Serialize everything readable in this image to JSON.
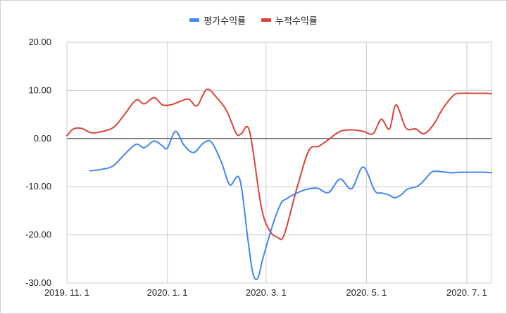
{
  "chart_data": {
    "type": "line",
    "title": "",
    "xlabel": "",
    "ylabel": "",
    "ylim": [
      -30,
      20
    ],
    "xlim": [
      "2019-11-01",
      "2020-07-16"
    ],
    "y_ticks": [
      20,
      10,
      0,
      -10,
      -20,
      -30
    ],
    "y_tick_labels": [
      "20.00",
      "10.00",
      "0.00",
      "-10.00",
      "-20.00",
      "-30.00"
    ],
    "x_ticks": [
      "2019-11-01",
      "2020-01-01",
      "2020-03-01",
      "2020-05-01",
      "2020-07-01"
    ],
    "x_tick_labels": [
      "2019. 11. 1",
      "2020. 1. 1",
      "2020. 3. 1",
      "2020. 5. 1",
      "2020. 7. 1"
    ],
    "grid": true,
    "legend": "top-center",
    "series": [
      {
        "name": "평가수익률",
        "color": "#4285f4",
        "x": [
          "2019-11-15",
          "2019-11-22",
          "2019-11-29",
          "2019-12-06",
          "2019-12-13",
          "2019-12-18",
          "2019-12-24",
          "2019-12-29",
          "2020-01-01",
          "2020-01-06",
          "2020-01-11",
          "2020-01-17",
          "2020-01-23",
          "2020-01-28",
          "2020-02-03",
          "2020-02-08",
          "2020-02-14",
          "2020-02-19",
          "2020-02-22",
          "2020-02-25",
          "2020-02-28",
          "2020-03-05",
          "2020-03-10",
          "2020-03-13",
          "2020-03-18",
          "2020-03-25",
          "2020-04-01",
          "2020-04-08",
          "2020-04-15",
          "2020-04-22",
          "2020-04-29",
          "2020-05-06",
          "2020-05-10",
          "2020-05-14",
          "2020-05-18",
          "2020-05-22",
          "2020-05-26",
          "2020-06-01",
          "2020-06-05",
          "2020-06-10",
          "2020-06-16",
          "2020-06-22",
          "2020-06-27",
          "2020-07-02",
          "2020-07-07",
          "2020-07-12",
          "2020-07-16"
        ],
        "y": [
          -6.7,
          -6.4,
          -5.7,
          -3.3,
          -1.2,
          -1.9,
          -0.5,
          -1.5,
          -2.0,
          1.5,
          -1.3,
          -2.9,
          -0.9,
          -0.8,
          -5.0,
          -9.6,
          -8.4,
          -21.0,
          -28.0,
          -29.0,
          -25.0,
          -18.0,
          -13.5,
          -12.6,
          -11.6,
          -10.6,
          -10.3,
          -11.2,
          -8.4,
          -10.4,
          -5.9,
          -10.8,
          -11.3,
          -11.6,
          -12.3,
          -11.7,
          -10.5,
          -9.9,
          -8.7,
          -6.9,
          -6.9,
          -7.1,
          -7.0,
          -7.0,
          -7.0,
          -7.0,
          -7.1
        ]
      },
      {
        "name": "누적수익률",
        "color": "#db4437",
        "x": [
          "2019-11-01",
          "2019-11-05",
          "2019-11-10",
          "2019-11-16",
          "2019-11-24",
          "2019-11-30",
          "2019-12-06",
          "2019-12-13",
          "2019-12-18",
          "2019-12-24",
          "2019-12-29",
          "2020-01-03",
          "2020-01-08",
          "2020-01-14",
          "2020-01-19",
          "2020-01-25",
          "2020-01-31",
          "2020-02-06",
          "2020-02-12",
          "2020-02-15",
          "2020-02-20",
          "2020-02-27",
          "2020-03-03",
          "2020-03-08",
          "2020-03-12",
          "2020-03-20",
          "2020-03-27",
          "2020-04-02",
          "2020-04-08",
          "2020-04-15",
          "2020-04-22",
          "2020-04-29",
          "2020-05-05",
          "2020-05-10",
          "2020-05-15",
          "2020-05-19",
          "2020-05-25",
          "2020-05-31",
          "2020-06-05",
          "2020-06-11",
          "2020-06-16",
          "2020-06-23",
          "2020-06-28",
          "2020-07-04",
          "2020-07-09",
          "2020-07-13",
          "2020-07-16"
        ],
        "y": [
          0.6,
          2.0,
          2.1,
          1.2,
          1.6,
          2.5,
          5.0,
          8.0,
          7.2,
          8.5,
          7.0,
          7.0,
          7.6,
          8.2,
          6.8,
          10.2,
          8.5,
          5.8,
          1.0,
          1.0,
          1.5,
          -14.0,
          -19.0,
          -20.5,
          -20.0,
          -10.0,
          -2.5,
          -1.6,
          -0.2,
          1.5,
          1.8,
          1.5,
          1.0,
          4.0,
          2.0,
          7.0,
          2.2,
          2.0,
          1.0,
          3.0,
          6.0,
          9.0,
          9.4,
          9.4,
          9.4,
          9.4,
          9.3
        ]
      }
    ]
  }
}
